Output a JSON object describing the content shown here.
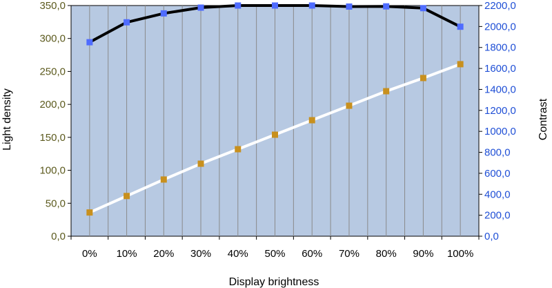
{
  "chart_data": {
    "type": "line",
    "categories": [
      "0%",
      "10%",
      "20%",
      "30%",
      "40%",
      "50%",
      "60%",
      "70%",
      "80%",
      "90%",
      "100%"
    ],
    "xlabel": "Display brightness",
    "ylabel": "Light density",
    "y2label": "Contrast",
    "ylim": [
      0,
      350
    ],
    "y2lim": [
      0,
      2200
    ],
    "y_ticks": [
      "0,0",
      "50,0",
      "100,0",
      "150,0",
      "200,0",
      "250,0",
      "300,0",
      "350,0"
    ],
    "y2_ticks": [
      "0,0",
      "200,0",
      "400,0",
      "600,0",
      "800,0",
      "1000,0",
      "1200,0",
      "1400,0",
      "1600,0",
      "1800,0",
      "2000,0",
      "2200,0"
    ],
    "grid": true,
    "series": [
      {
        "axis": "left",
        "line_color": "#ffffff",
        "marker_color": "#c8901e",
        "values": [
          36,
          61,
          86,
          110,
          132,
          154,
          176,
          198,
          220,
          240,
          261
        ]
      },
      {
        "axis": "right",
        "line_color": "#000000",
        "marker_color": "#4f6cff",
        "values": [
          1850,
          2040,
          2125,
          2180,
          2200,
          2200,
          2200,
          2190,
          2192,
          2175,
          1998
        ]
      }
    ],
    "colors": {
      "plot_bg": "#b7c9e2",
      "grid": "#8a8a8a",
      "left_tick": "#5c5a1e",
      "right_tick": "#1f4fd6"
    }
  }
}
